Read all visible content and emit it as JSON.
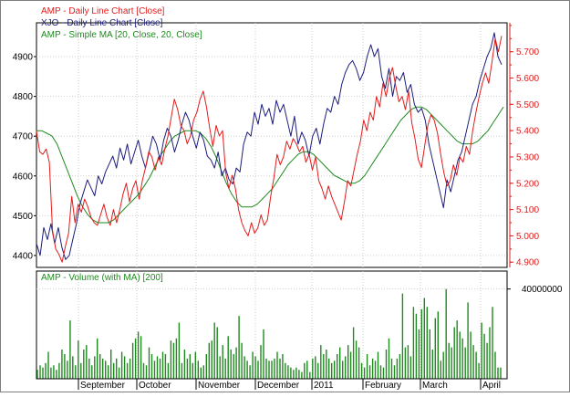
{
  "chart_data": [
    {
      "type": "line",
      "panel": "price",
      "legend_placement": "top-left",
      "grid": true,
      "left_axis": {
        "range": [
          4370,
          4985
        ],
        "ticks": [
          4400,
          4500,
          4600,
          4700,
          4800,
          4900
        ]
      },
      "right_axis": {
        "range": [
          4.88,
          5.81
        ],
        "ticks": [
          "4.900",
          "5.000",
          "5.100",
          "5.200",
          "5.300",
          "5.400",
          "5.500",
          "5.600",
          "5.700"
        ]
      },
      "series": [
        {
          "name": "AMP - Daily Line Chart [Close]",
          "color": "#e31b1b",
          "axis": "right",
          "values": [
            5.4,
            5.32,
            5.31,
            5.33,
            5.28,
            5.02,
            4.95,
            4.93,
            4.9,
            4.96,
            5.01,
            5.15,
            5.05,
            5.12,
            5.09,
            5.14,
            5.11,
            5.07,
            5.05,
            5.04,
            5.08,
            5.12,
            5.07,
            5.04,
            5.1,
            5.05,
            5.1,
            5.16,
            5.2,
            5.13,
            5.18,
            5.21,
            5.14,
            5.21,
            5.26,
            5.32,
            5.3,
            5.25,
            5.3,
            5.27,
            5.33,
            5.38,
            5.45,
            5.52,
            5.48,
            5.42,
            5.4,
            5.35,
            5.38,
            5.44,
            5.47,
            5.52,
            5.55,
            5.49,
            5.41,
            5.34,
            5.42,
            5.38,
            5.4,
            5.24,
            5.18,
            5.23,
            5.18,
            5.1,
            5.05,
            5.02,
            5.0,
            5.05,
            5.01,
            5.03,
            5.08,
            5.04,
            5.06,
            5.15,
            5.22,
            5.31,
            5.27,
            5.3,
            5.36,
            5.33,
            5.37,
            5.35,
            5.32,
            5.34,
            5.28,
            5.31,
            5.25,
            5.3,
            5.21,
            5.18,
            5.14,
            5.19,
            5.15,
            5.12,
            5.09,
            5.06,
            5.13,
            5.21,
            5.19,
            5.25,
            5.31,
            5.36,
            5.44,
            5.4,
            5.47,
            5.44,
            5.53,
            5.49,
            5.58,
            5.53,
            5.6,
            5.64,
            5.57,
            5.51,
            5.53,
            5.48,
            5.55,
            5.43,
            5.37,
            5.29,
            5.26,
            5.34,
            5.42,
            5.46,
            5.44,
            5.39,
            5.31,
            5.24,
            5.19,
            5.21,
            5.27,
            5.23,
            5.3,
            5.28,
            5.34,
            5.31,
            5.4,
            5.47,
            5.53,
            5.58,
            5.62,
            5.58,
            5.66,
            5.75,
            5.7,
            5.76
          ]
        },
        {
          "name": "XJO - Daily Line Chart [Close]",
          "color": "#1c1c7c",
          "axis": "left",
          "values": [
            4430,
            4400,
            4470,
            4440,
            4480,
            4430,
            4470,
            4420,
            4390,
            4400,
            4440,
            4480,
            4530,
            4560,
            4590,
            4570,
            4550,
            4600,
            4580,
            4610,
            4630,
            4650,
            4620,
            4670,
            4640,
            4680,
            4630,
            4660,
            4690,
            4650,
            4620,
            4660,
            4700,
            4680,
            4640,
            4690,
            4720,
            4700,
            4660,
            4690,
            4730,
            4760,
            4740,
            4700,
            4670,
            4710,
            4690,
            4650,
            4640,
            4620,
            4660,
            4600,
            4620,
            4590,
            4580,
            4620,
            4610,
            4680,
            4710,
            4700,
            4760,
            4730,
            4780,
            4750,
            4770,
            4730,
            4790,
            4760,
            4780,
            4740,
            4700,
            4750,
            4680,
            4710,
            4690,
            4650,
            4700,
            4720,
            4680,
            4730,
            4770,
            4760,
            4800,
            4780,
            4830,
            4860,
            4880,
            4890,
            4870,
            4840,
            4860,
            4900,
            4930,
            4900,
            4920,
            4850,
            4820,
            4870,
            4800,
            4850,
            4840,
            4860,
            4810,
            4830,
            4780,
            4760,
            4770,
            4740,
            4680,
            4640,
            4600,
            4560,
            4520,
            4590,
            4560,
            4600,
            4640,
            4660,
            4700,
            4740,
            4780,
            4800,
            4840,
            4870,
            4900,
            4920,
            4960,
            4900,
            4880
          ]
        },
        {
          "name": "AMP - Simple MA [20, Close, 20, Close]",
          "color": "#1e8a1e",
          "axis": "right",
          "values": [
            5.4,
            5.4,
            5.39,
            5.38,
            5.35,
            5.3,
            5.25,
            5.2,
            5.15,
            5.11,
            5.08,
            5.06,
            5.05,
            5.05,
            5.05,
            5.06,
            5.08,
            5.1,
            5.12,
            5.14,
            5.16,
            5.19,
            5.22,
            5.26,
            5.3,
            5.33,
            5.36,
            5.38,
            5.39,
            5.4,
            5.4,
            5.4,
            5.39,
            5.37,
            5.34,
            5.3,
            5.25,
            5.2,
            5.16,
            5.13,
            5.11,
            5.11,
            5.11,
            5.12,
            5.14,
            5.16,
            5.18,
            5.21,
            5.24,
            5.27,
            5.29,
            5.31,
            5.32,
            5.32,
            5.31,
            5.29,
            5.27,
            5.25,
            5.23,
            5.22,
            5.21,
            5.2,
            5.2,
            5.21,
            5.23,
            5.26,
            5.29,
            5.32,
            5.35,
            5.38,
            5.41,
            5.44,
            5.46,
            5.48,
            5.49,
            5.49,
            5.48,
            5.46,
            5.44,
            5.42,
            5.4,
            5.38,
            5.36,
            5.35,
            5.35,
            5.35,
            5.36,
            5.38,
            5.4,
            5.43,
            5.46,
            5.49
          ]
        }
      ]
    },
    {
      "type": "bar",
      "panel": "volume",
      "title": "AMP - Volume (with MA) [200]",
      "legend_placement": "top-left",
      "grid": true,
      "ylim": [
        0,
        48000000
      ],
      "y_ticks": [
        "40000000"
      ],
      "x_tick_labels": [
        "September",
        "October",
        "November",
        "December",
        "2011",
        "February",
        "March",
        "April"
      ],
      "series": [
        {
          "name": "AMP - Volume (with MA) [200]",
          "color": "#1e8a1e",
          "values": [
            4,
            6,
            5,
            7,
            12,
            5,
            6,
            4,
            7,
            13,
            11,
            8,
            26,
            10,
            6,
            17,
            7,
            13,
            15,
            9,
            6,
            10,
            18,
            11,
            9,
            8,
            6,
            13,
            7,
            9,
            5,
            12,
            10,
            7,
            9,
            16,
            18,
            21,
            19,
            7,
            6,
            14,
            11,
            8,
            10,
            9,
            12,
            11,
            7,
            17,
            16,
            18,
            25,
            7,
            13,
            9,
            11,
            7,
            12,
            8,
            5,
            6,
            11,
            16,
            17,
            25,
            23,
            10,
            15,
            9,
            19,
            13,
            11,
            14,
            28,
            16,
            10,
            8,
            6,
            12,
            10,
            8,
            15,
            22,
            9,
            8,
            8,
            9,
            12,
            9,
            11,
            7,
            6,
            5,
            4,
            5,
            4,
            3,
            7,
            8,
            3,
            9,
            10,
            7,
            15,
            11,
            13,
            9,
            7,
            8,
            11,
            14,
            8,
            10,
            15,
            12,
            23,
            17,
            14,
            7,
            5,
            11,
            6,
            9,
            8,
            12,
            6,
            5,
            13,
            18,
            9,
            6,
            9,
            11,
            38,
            14,
            15,
            10,
            32,
            29,
            22,
            31,
            36,
            32,
            22,
            13,
            27,
            30,
            8,
            12,
            40,
            16,
            14,
            23,
            26,
            21,
            18,
            14,
            34,
            21,
            15,
            12,
            7,
            25,
            20,
            16,
            23,
            32,
            12,
            5,
            5
          ]
        }
      ]
    }
  ]
}
